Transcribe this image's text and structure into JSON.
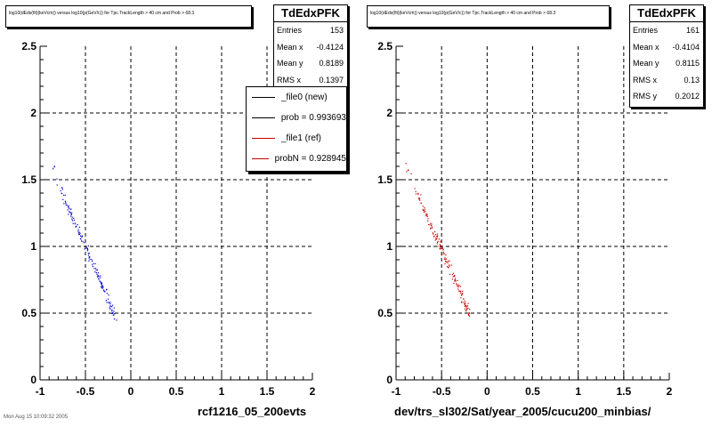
{
  "panels": [
    {
      "title": "log10(dEdx(fit)(keVcm)) versus log10(p(GeV/c)) for Tpc.TrackLength > 40 cm and Prob > 68.3",
      "stats": {
        "name": "TdEdxPFK",
        "rows": [
          {
            "label": "Entries",
            "value": "153"
          },
          {
            "label": "Mean x",
            "value": "-0.4124"
          },
          {
            "label": "Mean y",
            "value": "0.8189"
          },
          {
            "label": "RMS x",
            "value": "0.1397"
          }
        ]
      },
      "legend": [
        {
          "label": "_file0 (new)",
          "color": "#000000"
        },
        {
          "label": "prob = 0.993693",
          "color": "#000000"
        },
        {
          "label": "_file1 (ref)",
          "color": "#cc0000"
        },
        {
          "label": "probN = 0.928945",
          "color": "#cc0000"
        }
      ],
      "xtitle": "rcf1216_05_200evts"
    },
    {
      "title": "log10(dEdx(fit)(keVcm)) versus log10(p(GeV/c)) for Tpc.TrackLength > 40 cm and Prob > 68.3",
      "stats": {
        "name": "TdEdxPFK",
        "rows": [
          {
            "label": "Entries",
            "value": "161"
          },
          {
            "label": "Mean x",
            "value": "-0.4104"
          },
          {
            "label": "Mean y",
            "value": "0.8115"
          },
          {
            "label": "RMS x",
            "value": "0.13"
          },
          {
            "label": "RMS y",
            "value": "0.2012"
          }
        ]
      },
      "xtitle": "dev/trs_sl302/Sat/year_2005/cucu200_minbias/"
    }
  ],
  "footer": "Mon Aug 15 10:09:32 2005",
  "chart_data": [
    {
      "type": "scatter",
      "title": "log10(dEdx(fit)(keVcm)) versus log10(p(GeV/c)) for Tpc.TrackLength > 40 cm and Prob > 68.3",
      "xlabel": "rcf1216_05_200evts",
      "ylabel": "",
      "xlim": [
        -1,
        2
      ],
      "ylim": [
        0,
        2.5
      ],
      "xticks": [
        "-1",
        "-0.5",
        "0",
        "0.5",
        "1",
        "1.5",
        "2"
      ],
      "yticks": [
        "0",
        "0.5",
        "1",
        "1.5",
        "2",
        "2.5"
      ],
      "grid": true,
      "color": "#0000cc",
      "band": {
        "x_start": -0.88,
        "x_end": -0.18,
        "y_start": 1.6,
        "y_end": 0.48
      },
      "n_points": 153
    },
    {
      "type": "scatter",
      "title": "log10(dEdx(fit)(keVcm)) versus log10(p(GeV/c)) for Tpc.TrackLength > 40 cm and Prob > 68.3",
      "xlabel": "dev/trs_sl302/Sat/year_2005/cucu200_minbias/",
      "ylabel": "",
      "xlim": [
        -1,
        2
      ],
      "ylim": [
        0,
        2.5
      ],
      "xticks": [
        "-1",
        "-0.5",
        "0",
        "0.5",
        "1",
        "1.5",
        "2"
      ],
      "yticks": [
        "0",
        "0.5",
        "1",
        "1.5",
        "2",
        "2.5"
      ],
      "grid": true,
      "color": "#cc0000",
      "band": {
        "x_start": -0.9,
        "x_end": -0.2,
        "y_start": 1.6,
        "y_end": 0.5
      },
      "n_points": 161
    }
  ]
}
